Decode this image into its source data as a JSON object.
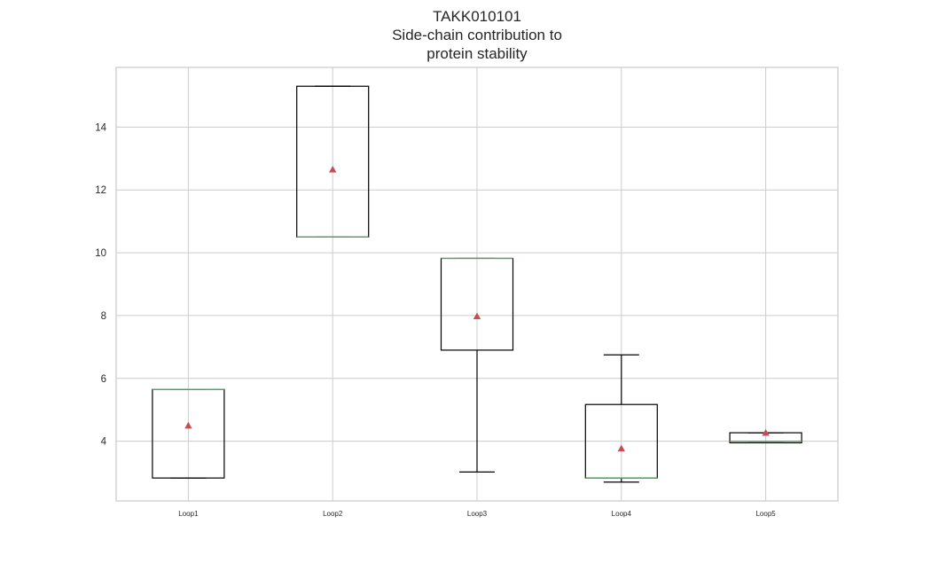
{
  "chart_data": {
    "type": "box",
    "title_lines": [
      "TAKK010101",
      "Side-chain contribution to",
      "protein stability"
    ],
    "xlabel": "",
    "ylabel": "",
    "categories": [
      "Loop1",
      "Loop2",
      "Loop3",
      "Loop4",
      "Loop5"
    ],
    "ylim": [
      2.1,
      15.9
    ],
    "yticks": [
      4,
      6,
      8,
      10,
      12,
      14
    ],
    "ytick_labels": [
      "4",
      "6",
      "8",
      "10",
      "12",
      "14"
    ],
    "grid": true,
    "boxes": [
      {
        "category": "Loop1",
        "whisker_low": 2.83,
        "q1": 2.83,
        "median": 5.65,
        "q3": 5.65,
        "whisker_high": 5.65,
        "mean": 4.5
      },
      {
        "category": "Loop2",
        "whisker_low": 10.5,
        "q1": 10.5,
        "median": 10.5,
        "q3": 15.3,
        "whisker_high": 15.3,
        "mean": 12.65
      },
      {
        "category": "Loop3",
        "whisker_low": 3.02,
        "q1": 6.9,
        "median": 9.82,
        "q3": 9.82,
        "whisker_high": 9.82,
        "mean": 7.98
      },
      {
        "category": "Loop4",
        "whisker_low": 2.7,
        "q1": 2.83,
        "median": 2.83,
        "q3": 5.17,
        "whisker_high": 6.75,
        "mean": 3.77
      },
      {
        "category": "Loop5",
        "whisker_low": 3.95,
        "q1": 3.95,
        "median": 4.0,
        "q3": 4.27,
        "whisker_high": 4.27,
        "mean": 4.27
      }
    ],
    "colors": {
      "box": "#000000",
      "median": "#55a868",
      "mean": "#c44e52",
      "grid": "#cccccc",
      "frame": "#cccccc"
    }
  }
}
